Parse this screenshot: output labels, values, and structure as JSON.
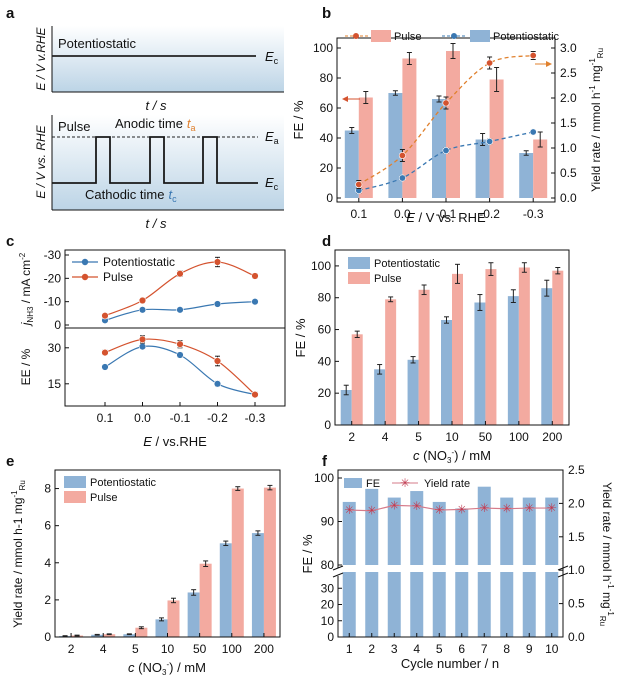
{
  "colors": {
    "blue_bar": "#8fb3d6",
    "red_bar": "#f3aaa0",
    "blue_line": "#3a78b2",
    "red_line": "#d4532f",
    "orange_dash": "#e0812e",
    "sky_top": "#ffffff",
    "sky_bottom": "#bcd4e6"
  },
  "chart_data": [
    {
      "panel": "a",
      "type": "diagram",
      "top": {
        "label": "Potentiostatic",
        "ylabel": "E / V v.RHE",
        "xlabel": "t / s",
        "level_label": "E",
        "level_sub": "c"
      },
      "bottom": {
        "label": "Pulse",
        "ylabel": "E / V vs. RHE",
        "xlabel": "t / s",
        "anodic_label": "Anodic time",
        "anodic_symbol": "t",
        "anodic_sub": "a",
        "cathodic_label": "Cathodic time",
        "cathodic_symbol": "t",
        "cathodic_sub": "c",
        "ea_label": "E",
        "ea_sub": "a",
        "ec_label": "E",
        "ec_sub": "c"
      }
    },
    {
      "panel": "b",
      "type": "bar+line",
      "title": "",
      "categories": [
        "0.1",
        "0.0",
        "-0.1",
        "-0.2",
        "-0.3"
      ],
      "xlabel_main": "E",
      "xlabel_rest": " / V vs. RHE",
      "ylabel_left": "FE / %",
      "ylabel_right_main": "Yield rate / mmol h",
      "ylabel_right_sup1": "-1",
      "ylabel_right_mid": " mg",
      "ylabel_right_sup2": "-1",
      "ylabel_right_sub": "Ru",
      "ylim_left": [
        0,
        100
      ],
      "yticks_left": [
        "0",
        "20",
        "40",
        "60",
        "80",
        "100"
      ],
      "ylim_right": [
        0,
        3.0
      ],
      "yticks_right": [
        "0.0",
        "0.5",
        "1.0",
        "1.5",
        "2.0",
        "2.5",
        "3.0"
      ],
      "legend": {
        "pulse": "Pulse",
        "potentiostatic": "Potentiostatic",
        "placement": "top"
      },
      "series": [
        {
          "name": "Potentiostatic FE",
          "kind": "bar",
          "values": [
            45,
            70,
            66,
            39,
            30
          ],
          "errors": [
            2,
            1.5,
            2,
            4,
            1.5
          ]
        },
        {
          "name": "Pulse FE",
          "kind": "bar",
          "values": [
            67,
            93,
            98,
            79,
            39
          ],
          "errors": [
            4,
            4,
            5,
            8,
            5
          ]
        },
        {
          "name": "Potentiostatic yield rate",
          "kind": "line",
          "values": [
            0.15,
            0.4,
            0.95,
            1.13,
            1.32
          ],
          "errors": [
            0.05,
            0.05,
            0.05,
            0.05,
            0.04
          ]
        },
        {
          "name": "Pulse yield rate",
          "kind": "line",
          "values": [
            0.27,
            0.85,
            1.9,
            2.7,
            2.85
          ],
          "errors": [
            0.08,
            0.12,
            0.12,
            0.12,
            0.08
          ]
        }
      ]
    },
    {
      "panel": "c",
      "type": "line",
      "categories": [
        "0.1",
        "0.0",
        "-0.1",
        "-0.2",
        "-0.3"
      ],
      "xlabel_main": "E",
      "xlabel_rest": " / vs.RHE",
      "legend": {
        "potentiostatic": "Potentiostatic",
        "pulse": "Pulse",
        "placement": "top-left"
      },
      "top": {
        "ylabel_main": "j",
        "ylabel_sub": "NH3",
        "ylabel_rest": " / mA cm",
        "ylabel_sup": "-2",
        "ylim": [
          0,
          -30
        ],
        "yticks": [
          "0",
          "-10",
          "-20",
          "-30"
        ],
        "series": [
          {
            "name": "Potentiostatic",
            "values": [
              -2,
              -6.5,
              -6.5,
              -9,
              -10
            ],
            "errors": [
              0.5,
              0.7,
              0.7,
              0.6,
              0.5
            ]
          },
          {
            "name": "Pulse",
            "values": [
              -4,
              -10.5,
              -22,
              -27,
              -21
            ],
            "errors": [
              0.8,
              1,
              1.2,
              2,
              1
            ]
          }
        ]
      },
      "bottom": {
        "ylabel": "EE / %",
        "ylim": [
          7,
          37
        ],
        "yticks": [
          "15",
          "30"
        ],
        "series": [
          {
            "name": "Potentiostatic",
            "values": [
              22,
              30.5,
              27,
              15,
              10.5
            ],
            "errors": [
              0.8,
              1,
              1,
              1,
              0.8
            ]
          },
          {
            "name": "Pulse",
            "values": [
              28,
              33.5,
              31.5,
              24.5,
              10.5
            ],
            "errors": [
              1,
              1.5,
              1.5,
              2,
              1
            ]
          }
        ]
      }
    },
    {
      "panel": "d",
      "type": "bar",
      "categories": [
        "2",
        "4",
        "5",
        "10",
        "50",
        "100",
        "200"
      ],
      "xlabel_main": "c",
      "xlabel_mid": " (NO",
      "xlabel_sub": "3",
      "xlabel_sup": "-",
      "xlabel_rest": ") / mM",
      "ylabel": "FE / %",
      "ylim": [
        0,
        110
      ],
      "yticks": [
        "0",
        "20",
        "40",
        "60",
        "80",
        "100"
      ],
      "legend": {
        "potentiostatic": "Potentiostatic",
        "pulse": "Pulse",
        "placement": "top-left"
      },
      "series": [
        {
          "name": "Potentiostatic",
          "values": [
            22,
            35,
            41,
            66,
            77,
            81,
            86
          ],
          "errors": [
            3,
            3,
            2,
            2,
            5,
            4,
            5
          ]
        },
        {
          "name": "Pulse",
          "values": [
            57,
            79,
            85,
            95,
            98,
            99,
            97
          ],
          "errors": [
            2,
            1.5,
            3,
            6,
            4,
            3,
            2
          ]
        }
      ]
    },
    {
      "panel": "e",
      "type": "bar",
      "categories": [
        "2",
        "4",
        "5",
        "10",
        "50",
        "100",
        "200"
      ],
      "xlabel_main": "c",
      "xlabel_mid": " (NO",
      "xlabel_sub": "3",
      "xlabel_sup": "-",
      "xlabel_rest": ") / mM",
      "ylabel_main": "Yield rate / mmol h-1 mg",
      "ylabel_sup": "-1",
      "ylabel_sub": "Ru",
      "ylim": [
        0,
        9
      ],
      "yticks": [
        "0",
        "2",
        "4",
        "6",
        "8"
      ],
      "legend": {
        "potentiostatic": "Potentiostatic",
        "pulse": "Pulse",
        "placement": "top-left"
      },
      "series": [
        {
          "name": "Potentiostatic",
          "values": [
            0.05,
            0.12,
            0.15,
            0.95,
            2.4,
            5.05,
            5.6
          ],
          "errors": [
            0.02,
            0.02,
            0.02,
            0.08,
            0.15,
            0.12,
            0.12
          ]
        },
        {
          "name": "Pulse",
          "values": [
            0.08,
            0.15,
            0.5,
            1.97,
            3.95,
            8.0,
            8.05
          ],
          "errors": [
            0.02,
            0.02,
            0.05,
            0.12,
            0.15,
            0.1,
            0.12
          ]
        }
      ]
    },
    {
      "panel": "f",
      "type": "bar+line",
      "categories": [
        "1",
        "2",
        "3",
        "4",
        "5",
        "6",
        "7",
        "8",
        "9",
        "10"
      ],
      "xlabel": "Cycle number / n",
      "ylabel": "FE / %",
      "ylabel_right_main": "Yield rate / mmol h",
      "ylabel_right_sup1": "-1",
      "ylabel_right_mid": " mg",
      "ylabel_right_sup2": "-1",
      "ylabel_right_sub": "Ru",
      "axis_break": true,
      "ylim_lower": [
        0,
        40
      ],
      "ylim_upper": [
        80,
        100
      ],
      "yticks_lower": [
        "0",
        "10",
        "20",
        "30"
      ],
      "yticks_upper": [
        "80",
        "90",
        "100"
      ],
      "ylim_right": [
        0,
        2.5
      ],
      "yticks_right": [
        "0.0",
        "0.5",
        "1.0",
        "1.5",
        "2.0",
        "2.5"
      ],
      "legend": {
        "fe": "FE",
        "yield": "Yield rate",
        "placement": "top-left"
      },
      "series": [
        {
          "name": "FE",
          "kind": "bar",
          "values": [
            94.5,
            97.5,
            95.5,
            97,
            94.5,
            93,
            98,
            95.5,
            95.5,
            95.5
          ]
        },
        {
          "name": "Yield rate",
          "kind": "line",
          "values": [
            1.9,
            1.89,
            1.97,
            1.96,
            1.9,
            1.91,
            1.93,
            1.92,
            1.93,
            1.93
          ]
        }
      ]
    }
  ]
}
